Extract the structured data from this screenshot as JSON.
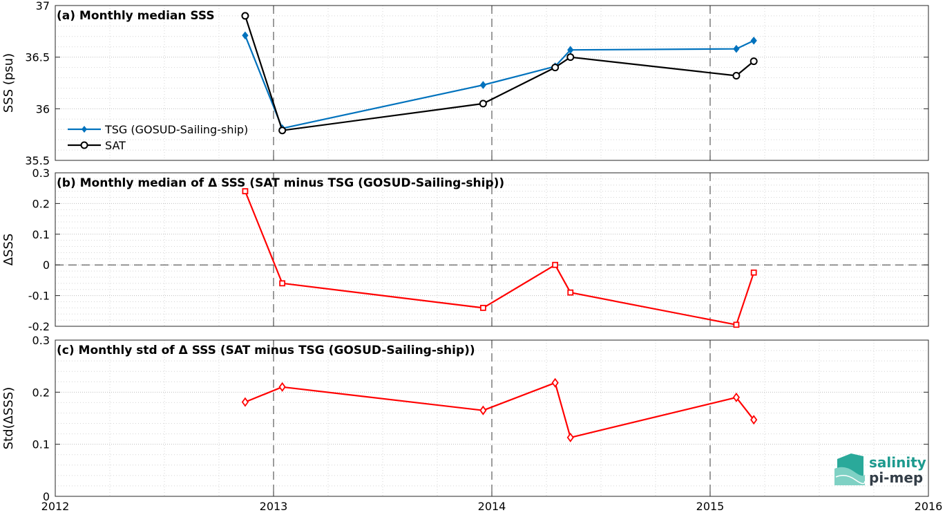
{
  "chart_data": [
    {
      "type": "line",
      "title": "(a) Monthly median SSS",
      "xlabel": "",
      "ylabel": "SSS (psu)",
      "xlim": [
        2012,
        2016
      ],
      "ylim": [
        35.5,
        37
      ],
      "xticks": [
        "2012",
        "2013",
        "2014",
        "2015",
        "2016"
      ],
      "yticks": [
        "35.5",
        "36",
        "36.5",
        "37"
      ],
      "grid": true,
      "legend_position": "left",
      "series": [
        {
          "name": "TSG (GOSUD-Sailing-ship)",
          "color": "#0072bd",
          "marker": "diamond",
          "x": [
            2012.87,
            2013.04,
            2013.96,
            2014.29,
            2014.36,
            2015.12,
            2015.2
          ],
          "y": [
            36.71,
            35.81,
            36.23,
            36.41,
            36.57,
            36.58,
            36.66
          ]
        },
        {
          "name": "SAT",
          "color": "#000000",
          "marker": "circle",
          "x": [
            2012.87,
            2013.04,
            2013.96,
            2014.29,
            2014.36,
            2015.12,
            2015.2
          ],
          "y": [
            36.9,
            35.79,
            36.05,
            36.4,
            36.5,
            36.32,
            36.46
          ]
        }
      ]
    },
    {
      "type": "line",
      "title": "(b) Monthly median of Δ SSS (SAT minus TSG (GOSUD-Sailing-ship))",
      "xlabel": "",
      "ylabel": "ΔSSS",
      "xlim": [
        2012,
        2016
      ],
      "ylim": [
        -0.2,
        0.3
      ],
      "xticks": [
        "2012",
        "2013",
        "2014",
        "2015",
        "2016"
      ],
      "yticks": [
        "-0.2",
        "-0.1",
        "0",
        "0.1",
        "0.2",
        "0.3"
      ],
      "grid": true,
      "series": [
        {
          "color": "#ff0000",
          "marker": "square",
          "x": [
            2012.87,
            2013.04,
            2013.96,
            2014.29,
            2014.36,
            2015.12,
            2015.2
          ],
          "y": [
            0.24,
            -0.06,
            -0.14,
            0.0,
            -0.09,
            -0.195,
            -0.025
          ]
        }
      ]
    },
    {
      "type": "line",
      "title": "(c) Monthly std of Δ SSS (SAT minus TSG (GOSUD-Sailing-ship))",
      "xlabel": "",
      "ylabel": "Std(ΔSSS)",
      "xlim": [
        2012,
        2016
      ],
      "ylim": [
        0,
        0.3
      ],
      "xticks": [
        "2012",
        "2013",
        "2014",
        "2015",
        "2016"
      ],
      "yticks": [
        "0",
        "0.1",
        "0.2",
        "0.3"
      ],
      "grid": true,
      "series": [
        {
          "color": "#ff0000",
          "marker": "diamond",
          "x": [
            2012.87,
            2013.04,
            2013.96,
            2014.29,
            2014.36,
            2015.12,
            2015.2
          ],
          "y": [
            0.181,
            0.21,
            0.165,
            0.218,
            0.113,
            0.19,
            0.147
          ]
        }
      ]
    }
  ],
  "logo": {
    "line1": "salinity",
    "line2": "pi-mep"
  },
  "colors": {
    "tsg": "#0072bd",
    "sat": "#000000",
    "delta": "#ff0000",
    "logo_teal": "#1d9a8e",
    "logo_dark": "#333d47"
  }
}
